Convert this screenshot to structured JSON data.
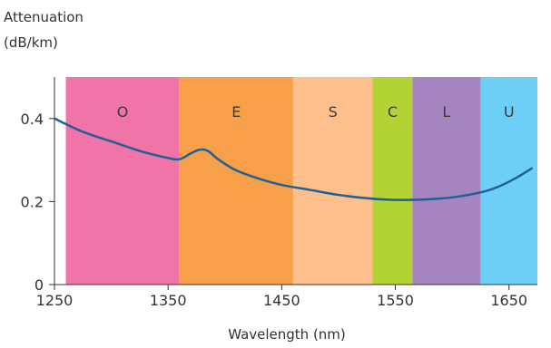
{
  "chart_data": {
    "type": "line",
    "ylabel_line1": "Attenuation",
    "ylabel_line2": "(dB/km)",
    "xlabel": "Wavelength (nm)",
    "xlim": [
      1250,
      1675
    ],
    "ylim": [
      0,
      0.5
    ],
    "x_ticks": [
      1250,
      1350,
      1450,
      1550,
      1650
    ],
    "y_ticks": [
      0,
      0.2,
      0.4
    ],
    "y_tick_labels": [
      "0",
      "0.2",
      "0.4"
    ],
    "grid": false,
    "bands": [
      {
        "label": "O",
        "start": 1260,
        "end": 1360,
        "color": "#f174a8"
      },
      {
        "label": "E",
        "start": 1360,
        "end": 1460,
        "color": "#f7a049"
      },
      {
        "label": "S",
        "start": 1460,
        "end": 1530,
        "color": "#fdc08d"
      },
      {
        "label": "C",
        "start": 1530,
        "end": 1565,
        "color": "#b3d335"
      },
      {
        "label": "L",
        "start": 1565,
        "end": 1625,
        "color": "#a585bf"
      },
      {
        "label": "U",
        "start": 1625,
        "end": 1675,
        "color": "#6dcff6"
      }
    ],
    "series": [
      {
        "color": "#1f5f9a",
        "x": [
          1250,
          1275,
          1300,
          1325,
          1350,
          1360,
          1370,
          1378,
          1385,
          1395,
          1410,
          1430,
          1450,
          1475,
          1500,
          1525,
          1550,
          1575,
          1600,
          1625,
          1640,
          1655,
          1670
        ],
        "y": [
          0.4,
          0.368,
          0.345,
          0.322,
          0.305,
          0.302,
          0.316,
          0.325,
          0.322,
          0.3,
          0.275,
          0.255,
          0.24,
          0.228,
          0.216,
          0.208,
          0.204,
          0.205,
          0.21,
          0.222,
          0.235,
          0.255,
          0.28
        ]
      }
    ]
  }
}
